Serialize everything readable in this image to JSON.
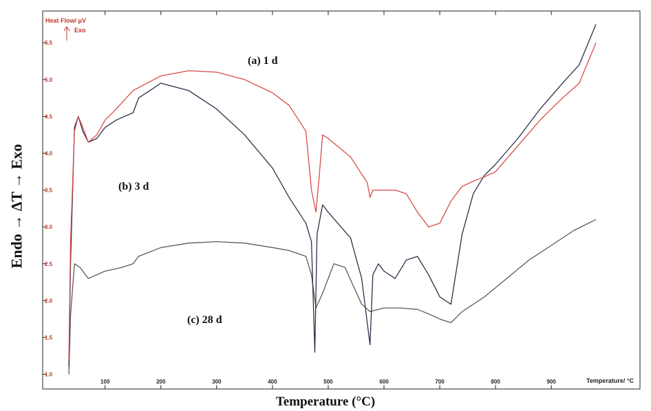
{
  "colors": {
    "series_a": "#d84a4a",
    "series_b": "#2b2f47",
    "series_c": "#5a5a5a",
    "axis": "#222222",
    "instrument_text": "#c0392b"
  },
  "instrument": {
    "ylabel": "Heat Flow/ μV",
    "exo_label": "Exo",
    "xlabel": "Temperature/ °C"
  },
  "figure": {
    "ylabel": "Endo  →  ΔT  →  Exo",
    "xlabel": "Temperature (°C)"
  },
  "chart_data": {
    "type": "line",
    "xlabel": "Temperature (°C)",
    "ylabel": "Endo → ΔT → Exo",
    "xlim": [
      30,
      1000
    ],
    "ylim": [
      0.8,
      5.8
    ],
    "xticks": [
      "100",
      "200",
      "300",
      "400",
      "500",
      "600",
      "700",
      "800",
      "900"
    ],
    "yticks": [
      "1.0",
      "1.5",
      "2.0",
      "2.5",
      "3.0",
      "3.5",
      "4.0",
      "4.5",
      "5.0",
      "5.5"
    ],
    "series": [
      {
        "name": "(a) 1 d",
        "x": [
          35,
          38,
          45,
          52,
          60,
          70,
          85,
          100,
          120,
          150,
          200,
          250,
          300,
          350,
          400,
          430,
          460,
          470,
          478,
          484,
          490,
          500,
          540,
          570,
          575,
          580,
          600,
          620,
          640,
          660,
          680,
          700,
          720,
          740,
          760,
          780,
          800,
          840,
          880,
          920,
          950,
          980
        ],
        "y": [
          1.2,
          2.8,
          4.3,
          4.5,
          4.35,
          4.15,
          4.25,
          4.45,
          4.6,
          4.85,
          5.05,
          5.12,
          5.1,
          5.0,
          4.82,
          4.65,
          4.3,
          3.5,
          3.2,
          3.7,
          4.25,
          4.2,
          3.95,
          3.6,
          3.4,
          3.5,
          3.5,
          3.5,
          3.45,
          3.2,
          3.0,
          3.05,
          3.35,
          3.55,
          3.62,
          3.68,
          3.75,
          4.1,
          4.45,
          4.75,
          4.95,
          5.5
        ]
      },
      {
        "name": "(b) 3 d",
        "x": [
          35,
          38,
          45,
          52,
          60,
          70,
          85,
          100,
          120,
          150,
          160,
          200,
          250,
          300,
          350,
          400,
          430,
          460,
          470,
          476,
          480,
          490,
          500,
          540,
          560,
          575,
          580,
          590,
          600,
          620,
          640,
          660,
          680,
          700,
          720,
          740,
          760,
          780,
          800,
          840,
          880,
          920,
          950,
          980
        ],
        "y": [
          1.1,
          2.5,
          4.35,
          4.5,
          4.3,
          4.15,
          4.2,
          4.35,
          4.45,
          4.55,
          4.75,
          4.95,
          4.85,
          4.6,
          4.25,
          3.8,
          3.4,
          3.05,
          2.8,
          1.3,
          2.9,
          3.3,
          3.2,
          2.85,
          2.3,
          1.4,
          2.35,
          2.5,
          2.4,
          2.3,
          2.55,
          2.6,
          2.35,
          2.05,
          1.95,
          2.9,
          3.45,
          3.7,
          3.85,
          4.2,
          4.6,
          4.95,
          5.2,
          5.75
        ]
      },
      {
        "name": "(c) 28 d",
        "x": [
          35,
          38,
          45,
          55,
          70,
          85,
          100,
          130,
          150,
          160,
          200,
          250,
          300,
          350,
          400,
          430,
          460,
          470,
          478,
          490,
          510,
          530,
          545,
          560,
          575,
          600,
          630,
          660,
          680,
          700,
          720,
          740,
          780,
          820,
          860,
          900,
          940,
          980
        ],
        "y": [
          1.0,
          1.8,
          2.5,
          2.45,
          2.3,
          2.35,
          2.4,
          2.45,
          2.5,
          2.6,
          2.72,
          2.78,
          2.8,
          2.78,
          2.72,
          2.68,
          2.6,
          2.35,
          1.9,
          2.1,
          2.5,
          2.45,
          2.2,
          1.95,
          1.85,
          1.9,
          1.9,
          1.88,
          1.82,
          1.75,
          1.7,
          1.85,
          2.05,
          2.3,
          2.55,
          2.75,
          2.95,
          3.1
        ]
      }
    ],
    "annotations": [
      "(a) 1 d",
      "(b) 3 d",
      "(c) 28 d"
    ]
  }
}
